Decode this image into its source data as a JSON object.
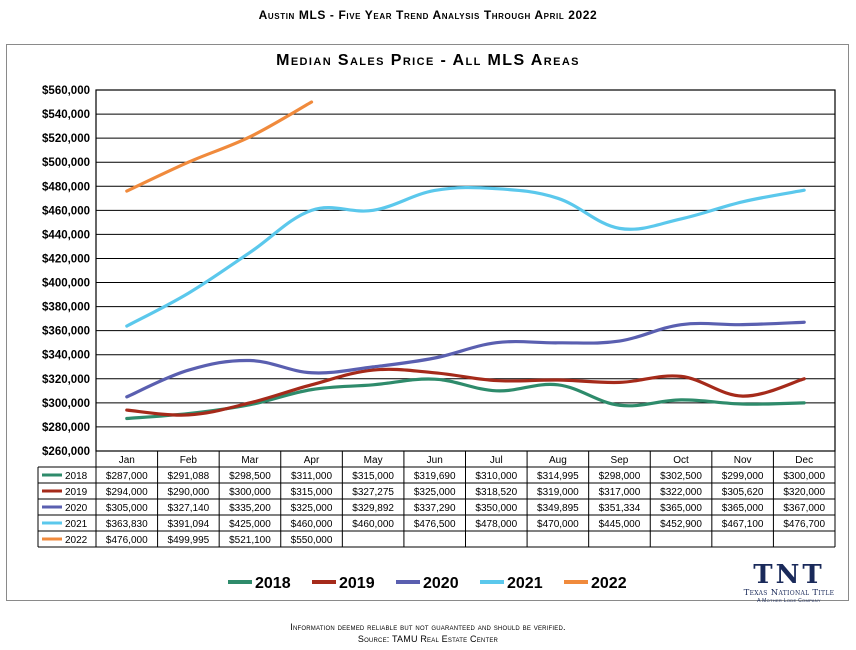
{
  "header": {
    "title": "Austin MLS - Five Year Trend Analysis Through April 2022"
  },
  "footer": {
    "line1": "Information deemed reliable but not guaranteed and should be verified.",
    "line2": "Source: TAMU Real Estate Center"
  },
  "logo": {
    "mark": "TNT",
    "name": "Texas National Title",
    "tagline": "A Mother Lode Company"
  },
  "chart_data": {
    "type": "line",
    "title": "Median Sales Price - All MLS Areas",
    "xlabel": "",
    "ylabel": "",
    "categories": [
      "Jan",
      "Feb",
      "Mar",
      "Apr",
      "May",
      "Jun",
      "Jul",
      "Aug",
      "Sep",
      "Oct",
      "Nov",
      "Dec"
    ],
    "ylim": [
      260000,
      560000
    ],
    "ytick_step": 20000,
    "yticks": [
      "$260,000",
      "$280,000",
      "$300,000",
      "$320,000",
      "$340,000",
      "$360,000",
      "$380,000",
      "$400,000",
      "$420,000",
      "$440,000",
      "$460,000",
      "$480,000",
      "$500,000",
      "$520,000",
      "$540,000",
      "$560,000"
    ],
    "grid": true,
    "legend_position": "bottom",
    "series": [
      {
        "name": "2018",
        "color": "#2e8b6b",
        "values": [
          287000,
          291088,
          298500,
          311000,
          315000,
          319690,
          310000,
          314995,
          298000,
          302500,
          299000,
          300000
        ],
        "labels": [
          "$287,000",
          "$291,088",
          "$298,500",
          "$311,000",
          "$315,000",
          "$319,690",
          "$310,000",
          "$314,995",
          "$298,000",
          "$302,500",
          "$299,000",
          "$300,000"
        ]
      },
      {
        "name": "2019",
        "color": "#a52a1a",
        "values": [
          294000,
          290000,
          300000,
          315000,
          327275,
          325000,
          318520,
          319000,
          317000,
          322000,
          305620,
          320000
        ],
        "labels": [
          "$294,000",
          "$290,000",
          "$300,000",
          "$315,000",
          "$327,275",
          "$325,000",
          "$318,520",
          "$319,000",
          "$317,000",
          "$322,000",
          "$305,620",
          "$320,000"
        ]
      },
      {
        "name": "2020",
        "color": "#5a5fb0",
        "values": [
          305000,
          327140,
          335200,
          325000,
          329892,
          337290,
          350000,
          349895,
          351334,
          365000,
          365000,
          367000
        ],
        "labels": [
          "$305,000",
          "$327,140",
          "$335,200",
          "$325,000",
          "$329,892",
          "$337,290",
          "$350,000",
          "$349,895",
          "$351,334",
          "$365,000",
          "$365,000",
          "$367,000"
        ]
      },
      {
        "name": "2021",
        "color": "#5bc8ec",
        "values": [
          363830,
          391094,
          425000,
          460000,
          460000,
          476500,
          478000,
          470000,
          445000,
          452900,
          467100,
          476700
        ],
        "labels": [
          "$363,830",
          "$391,094",
          "$425,000",
          "$460,000",
          "$460,000",
          "$476,500",
          "$478,000",
          "$470,000",
          "$445,000",
          "$452,900",
          "$467,100",
          "$476,700"
        ]
      },
      {
        "name": "2022",
        "color": "#f08a3c",
        "values": [
          476000,
          499995,
          521100,
          550000,
          null,
          null,
          null,
          null,
          null,
          null,
          null,
          null
        ],
        "labels": [
          "$476,000",
          "$499,995",
          "$521,100",
          "$550,000",
          "",
          "",
          "",
          "",
          "",
          "",
          "",
          ""
        ]
      }
    ]
  }
}
